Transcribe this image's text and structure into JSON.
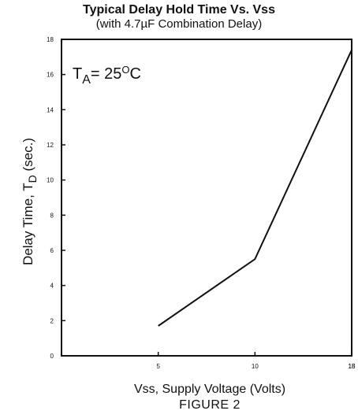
{
  "chart_data": {
    "type": "line",
    "title": "Typical Delay Hold Time Vs. Vss",
    "subtitle": "(with 4.7µF Combination Delay)",
    "annotation": {
      "base": "T",
      "sub": "A",
      "eq": "= 25",
      "sup": "O",
      "unit": "C"
    },
    "xlabel": "Vss, Supply Voltage (Volts)",
    "ylabel": {
      "text": "Delay Time, T",
      "sub": "D",
      "unit": "(sec.)"
    },
    "xlim": [
      0,
      15
    ],
    "ylim": [
      0,
      18
    ],
    "x_ticks": [
      5,
      10,
      15,
      18
    ],
    "x_tick_labels": [
      "5",
      "10",
      "15",
      "18"
    ],
    "y_ticks": [
      0,
      2,
      4,
      6,
      8,
      10,
      12,
      14,
      16,
      18
    ],
    "y_tick_labels": [
      "0",
      "2",
      "4",
      "6",
      "8",
      "10",
      "12",
      "14",
      "16",
      "18"
    ],
    "grid": false,
    "series": [
      {
        "points": [
          [
            5,
            1.7
          ],
          [
            10,
            5.5
          ],
          [
            15,
            17.4
          ]
        ]
      }
    ]
  },
  "figure_caption": "FIGURE 2"
}
